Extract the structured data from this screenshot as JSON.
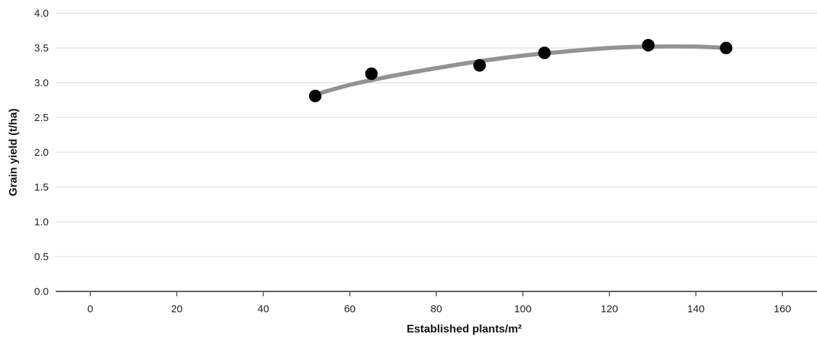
{
  "chart_data": {
    "type": "scatter",
    "title": "",
    "xlabel": "Established plants/m²",
    "ylabel": "Grain yield (t/ha)",
    "xlim": [
      -8,
      168
    ],
    "ylim": [
      0,
      4.0
    ],
    "x_ticks": [
      0,
      20,
      40,
      60,
      80,
      100,
      120,
      140,
      160
    ],
    "y_ticks": [
      0.0,
      0.5,
      1.0,
      1.5,
      2.0,
      2.5,
      3.0,
      3.5,
      4.0
    ],
    "grid": "horizontal",
    "legend": "none",
    "series": [
      {
        "x": [
          52,
          65,
          90,
          105,
          129,
          147
        ],
        "y": [
          2.81,
          3.13,
          3.25,
          3.43,
          3.54,
          3.5
        ]
      }
    ],
    "trendline": {
      "type": "polynomial",
      "x": [
        52,
        60,
        70,
        80,
        90,
        100,
        110,
        120,
        130,
        140,
        147
      ],
      "y": [
        2.83,
        2.97,
        3.1,
        3.21,
        3.31,
        3.39,
        3.45,
        3.5,
        3.52,
        3.52,
        3.5
      ]
    },
    "colors": {
      "points": "#000000",
      "trendline": "#939393",
      "grid": "#d9d9d9",
      "axis": "#595959"
    }
  }
}
